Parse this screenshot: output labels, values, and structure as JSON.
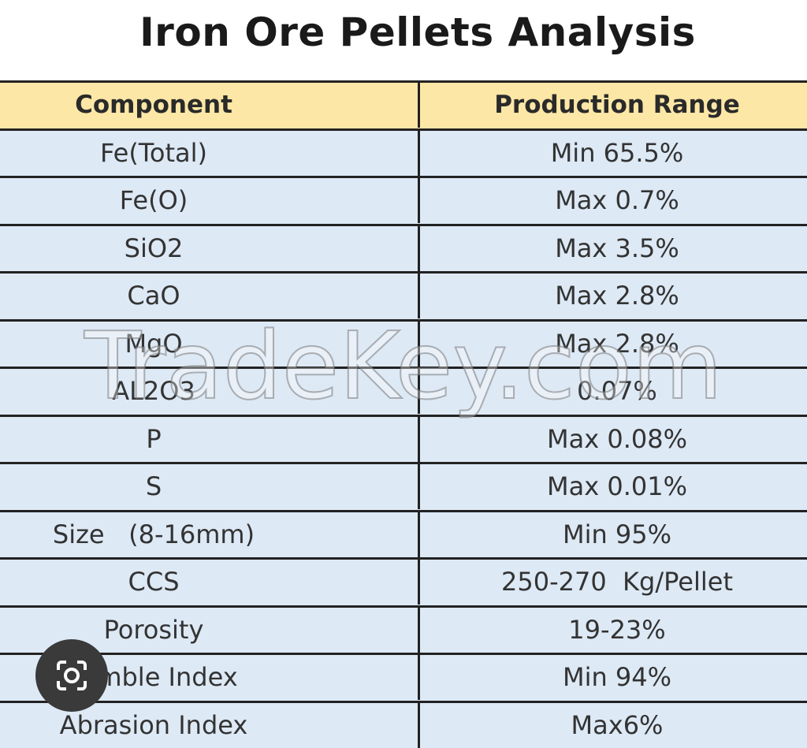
{
  "header": {
    "title": "Iron Ore Pellets Analysis"
  },
  "table": {
    "columns": [
      "Component",
      "Production Range"
    ],
    "rows": [
      [
        "Fe(Total)",
        "Min 65.5%"
      ],
      [
        "Fe(O)",
        "Max 0.7%"
      ],
      [
        "SiO2",
        "Max 3.5%"
      ],
      [
        "CaO",
        "Max 2.8%"
      ],
      [
        "MgO",
        "Max 2.8%"
      ],
      [
        "AL2O3",
        "0.07%"
      ],
      [
        "P",
        "Max 0.08%"
      ],
      [
        "S",
        "Max 0.01%"
      ],
      [
        "Size   (8-16mm)",
        "Min 95%"
      ],
      [
        "CCS",
        "250-270  Kg/Pellet"
      ],
      [
        "Porosity",
        "19-23%"
      ],
      [
        "Tumble Index",
        "Min 94%"
      ],
      [
        "Abrasion Index",
        "Max6%"
      ]
    ]
  },
  "watermark": "TradeKey.com"
}
